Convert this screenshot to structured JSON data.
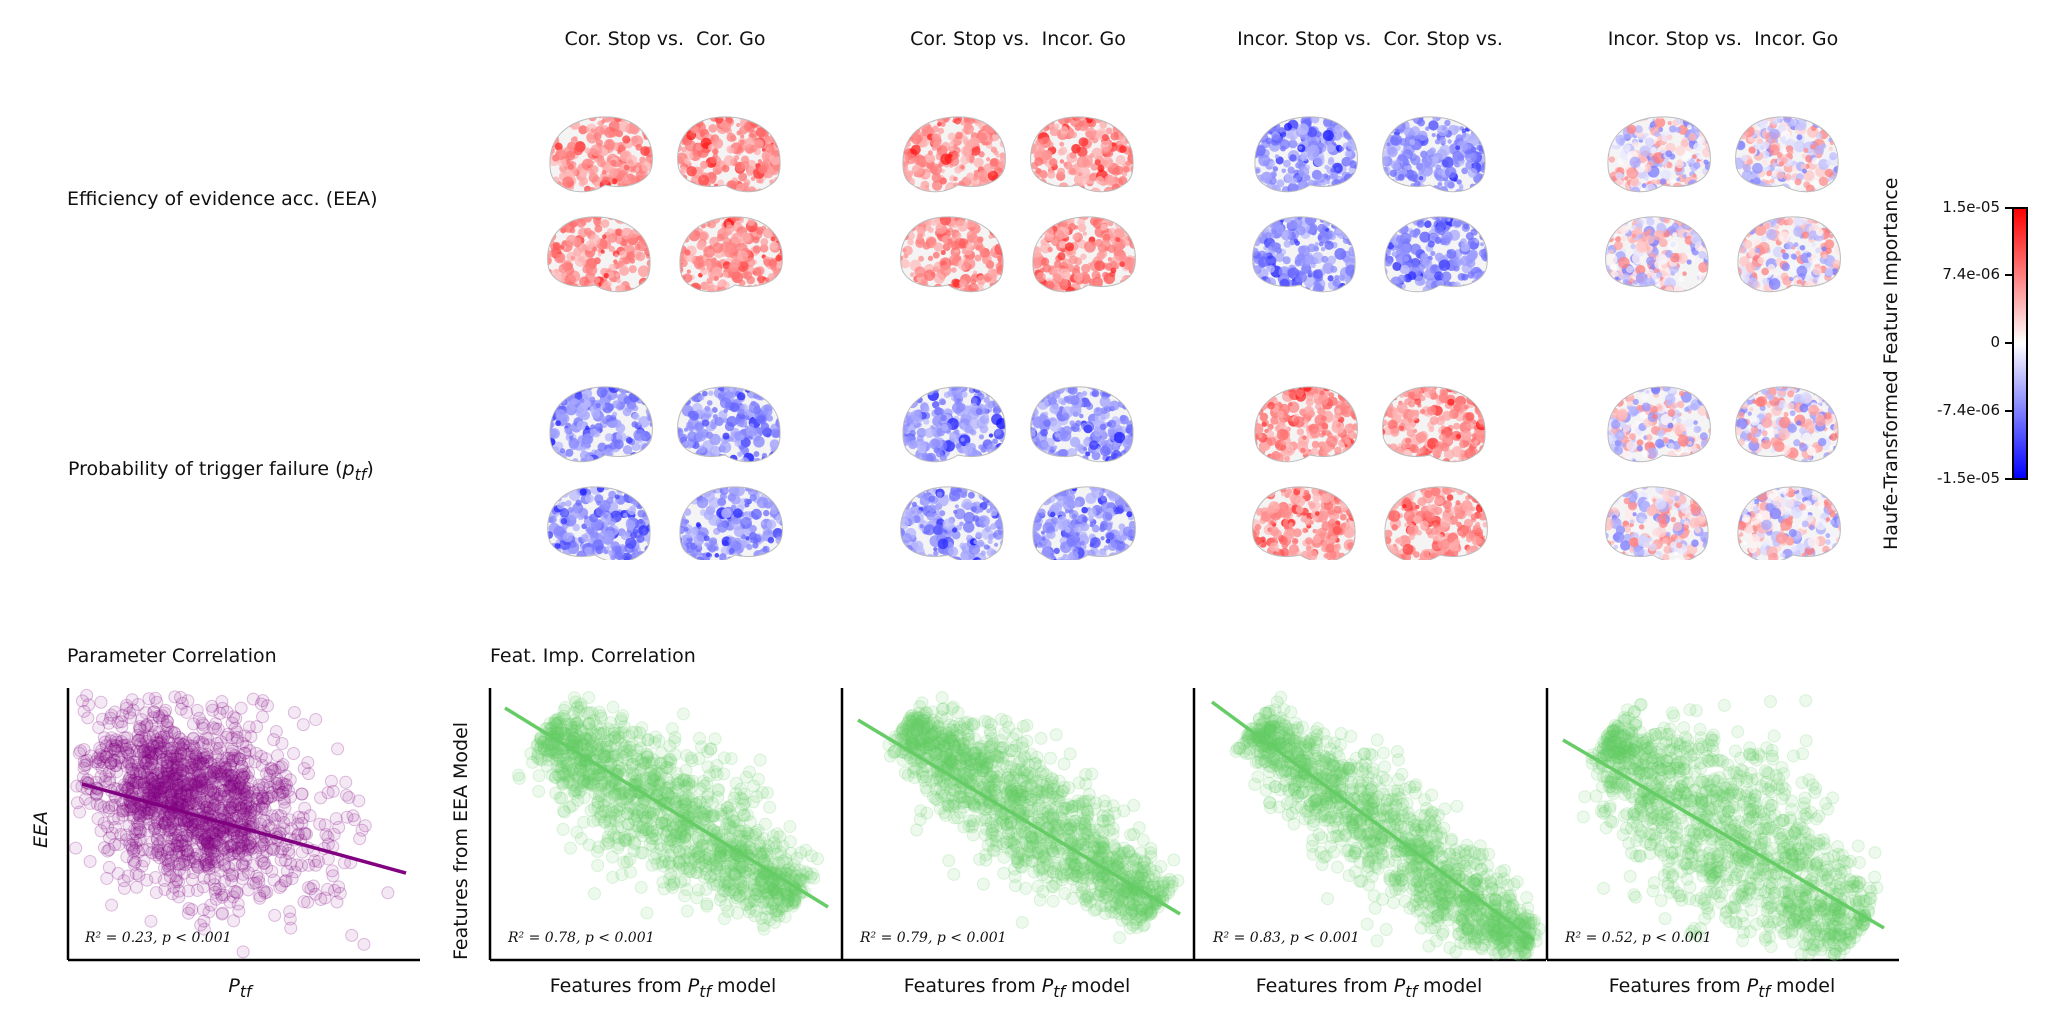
{
  "columns": [
    "Cor. Stop vs.  Cor. Go",
    "Cor. Stop vs.  Incor. Go",
    "Incor. Stop vs.  Cor. Stop vs.",
    "Incor. Stop vs.  Incor. Go"
  ],
  "rows": {
    "eea": "Efficiency of evidence acc. (EEA)",
    "ptf_prefix": "Probability of trigger failure (",
    "ptf_sym": "p",
    "ptf_sub": "tf",
    "ptf_suffix": ")"
  },
  "brain_maps": {
    "eea": [
      "positive",
      "positive",
      "negative",
      "mixed"
    ],
    "ptf": [
      "negative",
      "negative",
      "positive",
      "mixed"
    ]
  },
  "colorbar": {
    "title": "Haufe-Transformed Feature Importance",
    "ticks": [
      "1.5e-05",
      "7.4e-06",
      "0",
      "-7.4e-06",
      "-1.5e-05"
    ],
    "colors": {
      "high": "#ff0000",
      "mid": "#ffffff",
      "low": "#0000ff"
    }
  },
  "param_section": {
    "title": "Parameter Correlation",
    "ylabel": "EEA",
    "xlabel_sym": "P",
    "xlabel_sub": "tf",
    "stat": "R² = 0.23, p < 0.001",
    "color": "#800080"
  },
  "feat_section": {
    "title": "Feat. Imp. Correlation",
    "ylabel": "Features from EEA Model",
    "xlabel_prefix": "Features from ",
    "xlabel_sym": "P",
    "xlabel_sub": "tf",
    "xlabel_suffix": " model",
    "color": "#66cc66",
    "stats": [
      "R² = 0.78, p < 0.001",
      "R² = 0.79, p < 0.001",
      "R² = 0.83, p < 0.001",
      "R² = 0.52, p < 0.001"
    ]
  },
  "chart_data": [
    {
      "type": "scatter",
      "title": "Parameter Correlation",
      "xlabel": "Ptf",
      "ylabel": "EEA",
      "trend": "negative",
      "r2": 0.23,
      "p": "< 0.001"
    },
    {
      "type": "scatter",
      "title": "Feat. Imp. Correlation",
      "panel": "Cor. Stop vs.  Cor. Go",
      "xlabel": "Features from Ptf model",
      "ylabel": "Features from EEA Model",
      "trend": "negative",
      "r2": 0.78,
      "p": "< 0.001"
    },
    {
      "type": "scatter",
      "panel": "Cor. Stop vs.  Incor. Go",
      "xlabel": "Features from Ptf model",
      "trend": "negative",
      "r2": 0.79,
      "p": "< 0.001"
    },
    {
      "type": "scatter",
      "panel": "Incor. Stop vs.  Cor. Stop vs.",
      "xlabel": "Features from Ptf model",
      "trend": "negative",
      "r2": 0.83,
      "p": "< 0.001"
    },
    {
      "type": "scatter",
      "panel": "Incor. Stop vs.  Incor. Go",
      "xlabel": "Features from Ptf model",
      "trend": "negative",
      "r2": 0.52,
      "p": "< 0.001"
    }
  ]
}
